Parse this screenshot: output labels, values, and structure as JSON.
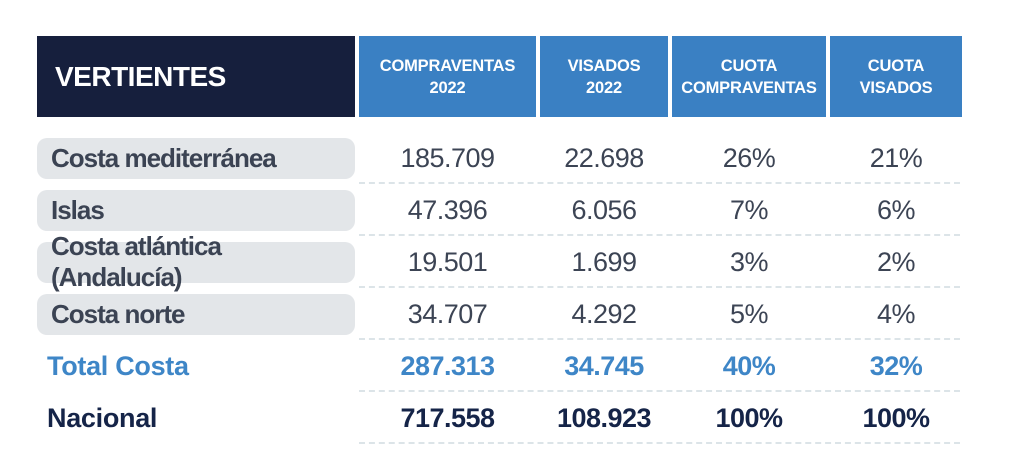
{
  "table": {
    "header": {
      "label_col": "VERTIENTES",
      "cols": [
        {
          "line1": "COMPRAVENTAS",
          "line2": "2022"
        },
        {
          "line1": "VISADOS",
          "line2": "2022"
        },
        {
          "line1": "CUOTA",
          "line2": "COMPRAVENTAS"
        },
        {
          "line1": "CUOTA",
          "line2": "VISADOS"
        }
      ]
    },
    "rows": [
      {
        "name": "Costa mediterránea",
        "values": [
          "185.709",
          "22.698",
          "26%",
          "21%"
        ]
      },
      {
        "name": "Islas",
        "values": [
          "47.396",
          "6.056",
          "7%",
          "6%"
        ]
      },
      {
        "name": "Costa atlántica (Andalucía)",
        "values": [
          "19.501",
          "1.699",
          "3%",
          "2%"
        ]
      },
      {
        "name": "Costa norte",
        "values": [
          "34.707",
          "4.292",
          "5%",
          "4%"
        ]
      },
      {
        "name": "Total Costa",
        "values": [
          "287.313",
          "34.745",
          "40%",
          "32%"
        ]
      },
      {
        "name": "Nacional",
        "values": [
          "717.558",
          "108.923",
          "100%",
          "100%"
        ]
      }
    ],
    "colors": {
      "header_navy": "#161f3d",
      "header_blue": "#3a80c3",
      "row_pill_gray": "#e3e6e9",
      "body_text": "#3c4454",
      "total_costa_blue": "#3e86c7",
      "nacional_navy": "#152448",
      "separator": "#dce4e8"
    }
  },
  "chart_data": {
    "type": "table",
    "columns": [
      "VERTIENTES",
      "COMPRAVENTAS 2022",
      "VISADOS 2022",
      "CUOTA COMPRAVENTAS",
      "CUOTA VISADOS"
    ],
    "rows": [
      [
        "Costa mediterránea",
        "185.709",
        "22.698",
        "26%",
        "21%"
      ],
      [
        "Islas",
        "47.396",
        "6.056",
        "7%",
        "6%"
      ],
      [
        "Costa atlántica (Andalucía)",
        "19.501",
        "1.699",
        "3%",
        "2%"
      ],
      [
        "Costa norte",
        "34.707",
        "4.292",
        "5%",
        "4%"
      ],
      [
        "Total Costa",
        "287.313",
        "34.745",
        "40%",
        "32%"
      ],
      [
        "Nacional",
        "717.558",
        "108.923",
        "100%",
        "100%"
      ]
    ],
    "notes": "Static statistics table; rows 5-6 are emphasized totals (Total Costa in blue, Nacional in navy)."
  }
}
